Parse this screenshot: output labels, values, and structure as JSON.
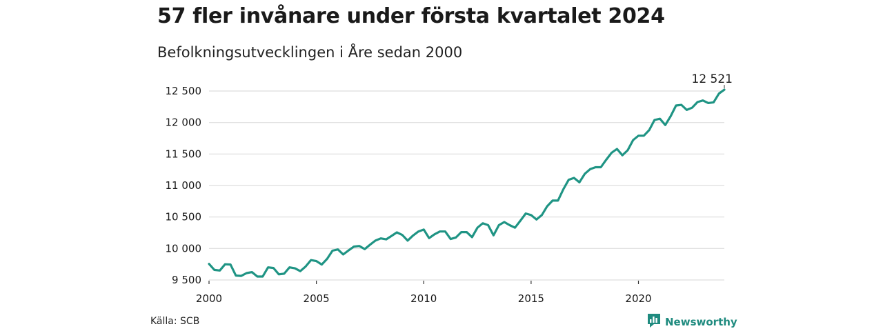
{
  "header": {
    "title": "57 fler invånare under första kvartalet 2024",
    "subtitle": "Befolkningsutvecklingen i Åre sedan 2000"
  },
  "footer": {
    "source": "Källa: SCB",
    "brand": "Newsworthy",
    "brand_icon": "bar-chart-icon"
  },
  "colors": {
    "line": "#1f9484",
    "grid": "#dddddd",
    "brand": "#1f8b7f"
  },
  "chart_data": {
    "type": "line",
    "title": "57 fler invånare under första kvartalet 2024",
    "subtitle": "Befolkningsutvecklingen i Åre sedan 2000",
    "xlabel": "",
    "ylabel": "",
    "x_ticks": [
      2000,
      2005,
      2010,
      2015,
      2020
    ],
    "x_tick_labels": [
      "2000",
      "2005",
      "2010",
      "2015",
      "2020"
    ],
    "y_ticks": [
      9500,
      10000,
      10500,
      11000,
      11500,
      12000,
      12500
    ],
    "y_tick_labels": [
      "9 500",
      "10 000",
      "10 500",
      "11 000",
      "11 500",
      "12 000",
      "12 500"
    ],
    "xlim": [
      2000,
      2024.0
    ],
    "ylim": [
      9500,
      12500
    ],
    "grid": true,
    "end_label": "12 521",
    "series": [
      {
        "frequency": "quarterly",
        "start": "2000 Q1",
        "values": [
          9755,
          9660,
          9650,
          9750,
          9745,
          9570,
          9565,
          9610,
          9625,
          9555,
          9555,
          9700,
          9690,
          9590,
          9600,
          9700,
          9685,
          9640,
          9715,
          9815,
          9800,
          9745,
          9835,
          9965,
          9985,
          9905,
          9970,
          10030,
          10040,
          9990,
          10060,
          10125,
          10160,
          10145,
          10200,
          10255,
          10215,
          10125,
          10205,
          10270,
          10300,
          10165,
          10225,
          10270,
          10270,
          10150,
          10175,
          10260,
          10260,
          10180,
          10330,
          10400,
          10370,
          10210,
          10370,
          10420,
          10370,
          10330,
          10440,
          10555,
          10530,
          10460,
          10530,
          10670,
          10760,
          10760,
          10940,
          11090,
          11120,
          11050,
          11185,
          11260,
          11290,
          11290,
          11410,
          11520,
          11580,
          11480,
          11560,
          11720,
          11790,
          11790,
          11880,
          12040,
          12060,
          11960,
          12100,
          12270,
          12280,
          12200,
          12235,
          12325,
          12350,
          12310,
          12320,
          12460,
          12521
        ]
      }
    ]
  }
}
